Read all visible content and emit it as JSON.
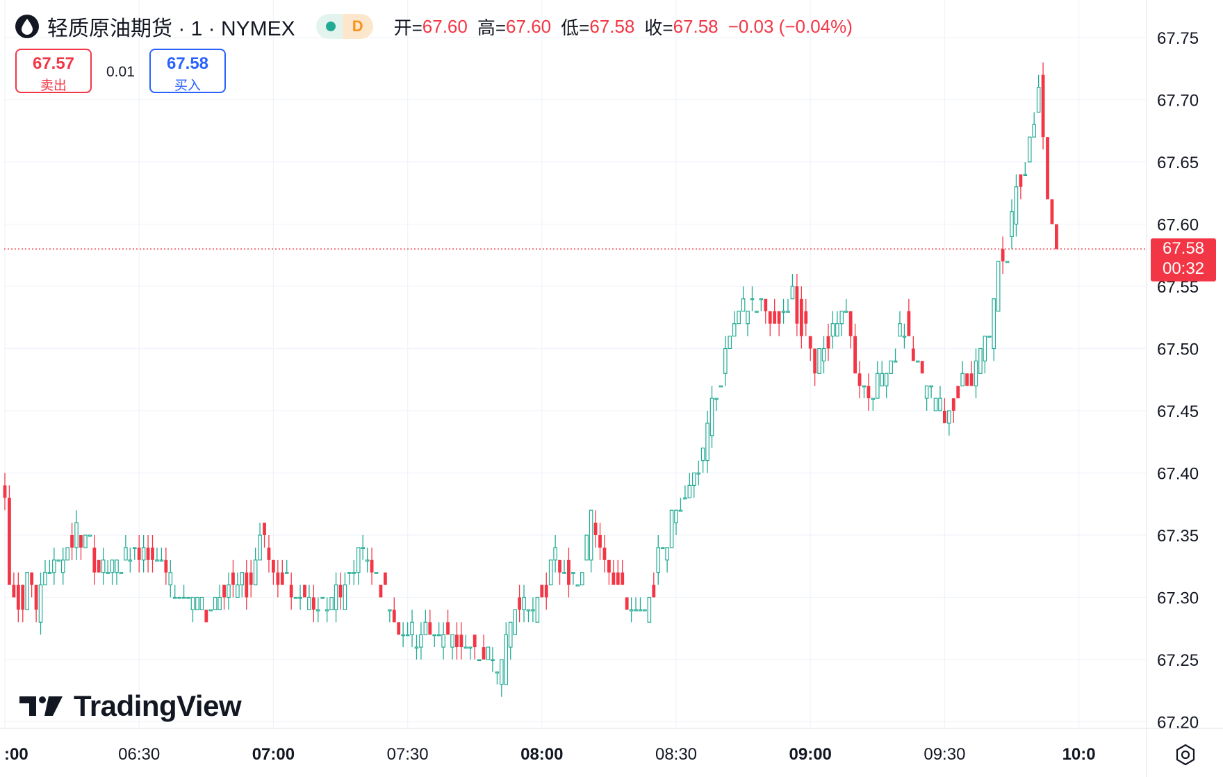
{
  "header": {
    "title": "轻质原油期货 · 1 · NYMEX",
    "badge_letter": "D",
    "ohlc": [
      {
        "label": "开=",
        "value": "67.60"
      },
      {
        "label": "高=",
        "value": "67.60"
      },
      {
        "label": "低=",
        "value": "67.58"
      },
      {
        "label": "收=",
        "value": "67.58"
      }
    ],
    "change": "−0.03 (−0.04%)"
  },
  "trade": {
    "sell_price": "67.57",
    "sell_label": "卖出",
    "spread": "0.01",
    "buy_price": "67.58",
    "buy_label": "买入"
  },
  "price_tag": {
    "price": "67.58",
    "countdown": "00:32"
  },
  "brand": {
    "name": "TradingView"
  },
  "colors": {
    "up": "#22ab94",
    "down": "#f23645",
    "grid": "#f0f3fa",
    "accent": "#2962ff"
  },
  "chart_data": {
    "type": "candlestick",
    "instrument": "轻质原油期货",
    "interval": "1",
    "exchange": "NYMEX",
    "y_ticks": [
      "67.75",
      "67.70",
      "67.65",
      "67.60",
      "67.55",
      "67.50",
      "67.45",
      "67.40",
      "67.35",
      "67.30",
      "67.25",
      "67.20"
    ],
    "ylim": [
      67.18,
      67.775
    ],
    "x_ticks": [
      {
        "label": ":00",
        "minute": 0,
        "bold": true
      },
      {
        "label": "06:30",
        "minute": 30,
        "bold": false
      },
      {
        "label": "07:00",
        "minute": 60,
        "bold": true
      },
      {
        "label": "07:30",
        "minute": 90,
        "bold": false
      },
      {
        "label": "08:00",
        "minute": 120,
        "bold": true
      },
      {
        "label": "08:30",
        "minute": 150,
        "bold": false
      },
      {
        "label": "09:00",
        "minute": 180,
        "bold": true
      },
      {
        "label": "09:30",
        "minute": 210,
        "bold": false
      },
      {
        "label": "10:0",
        "minute": 240,
        "bold": true
      }
    ],
    "last_price": 67.58,
    "grid": true,
    "anchors": [
      {
        "m": 0,
        "p": 67.38
      },
      {
        "m": 1,
        "p": 67.31
      },
      {
        "m": 4,
        "p": 67.3
      },
      {
        "m": 5,
        "p": 67.33
      },
      {
        "m": 7,
        "p": 67.29
      },
      {
        "m": 9,
        "p": 67.32
      },
      {
        "m": 12,
        "p": 67.33
      },
      {
        "m": 16,
        "p": 67.35
      },
      {
        "m": 19,
        "p": 67.34
      },
      {
        "m": 22,
        "p": 67.32
      },
      {
        "m": 26,
        "p": 67.33
      },
      {
        "m": 30,
        "p": 67.34
      },
      {
        "m": 35,
        "p": 67.33
      },
      {
        "m": 38,
        "p": 67.3
      },
      {
        "m": 45,
        "p": 67.29
      },
      {
        "m": 50,
        "p": 67.31
      },
      {
        "m": 55,
        "p": 67.31
      },
      {
        "m": 57,
        "p": 67.36
      },
      {
        "m": 60,
        "p": 67.32
      },
      {
        "m": 65,
        "p": 67.3
      },
      {
        "m": 70,
        "p": 67.29
      },
      {
        "m": 75,
        "p": 67.3
      },
      {
        "m": 79,
        "p": 67.34
      },
      {
        "m": 83,
        "p": 67.32
      },
      {
        "m": 87,
        "p": 67.28
      },
      {
        "m": 92,
        "p": 67.27
      },
      {
        "m": 100,
        "p": 67.27
      },
      {
        "m": 104,
        "p": 67.26
      },
      {
        "m": 108,
        "p": 67.25
      },
      {
        "m": 111,
        "p": 67.24
      },
      {
        "m": 114,
        "p": 67.3
      },
      {
        "m": 118,
        "p": 67.29
      },
      {
        "m": 123,
        "p": 67.33
      },
      {
        "m": 128,
        "p": 67.31
      },
      {
        "m": 131,
        "p": 67.36
      },
      {
        "m": 135,
        "p": 67.33
      },
      {
        "m": 138,
        "p": 67.3
      },
      {
        "m": 143,
        "p": 67.28
      },
      {
        "m": 146,
        "p": 67.33
      },
      {
        "m": 150,
        "p": 67.37
      },
      {
        "m": 154,
        "p": 67.4
      },
      {
        "m": 157,
        "p": 67.43
      },
      {
        "m": 159,
        "p": 67.47
      },
      {
        "m": 163,
        "p": 67.52
      },
      {
        "m": 167,
        "p": 67.54
      },
      {
        "m": 172,
        "p": 67.52
      },
      {
        "m": 176,
        "p": 67.54
      },
      {
        "m": 181,
        "p": 67.49
      },
      {
        "m": 184,
        "p": 67.51
      },
      {
        "m": 188,
        "p": 67.53
      },
      {
        "m": 191,
        "p": 67.47
      },
      {
        "m": 194,
        "p": 67.46
      },
      {
        "m": 197,
        "p": 67.48
      },
      {
        "m": 201,
        "p": 67.52
      },
      {
        "m": 205,
        "p": 67.47
      },
      {
        "m": 210,
        "p": 67.45
      },
      {
        "m": 214,
        "p": 67.47
      },
      {
        "m": 218,
        "p": 67.49
      },
      {
        "m": 220,
        "p": 67.51
      },
      {
        "m": 222,
        "p": 67.57
      },
      {
        "m": 224,
        "p": 67.58
      },
      {
        "m": 226,
        "p": 67.63
      },
      {
        "m": 229,
        "p": 67.66
      },
      {
        "m": 231,
        "p": 67.71
      },
      {
        "m": 233,
        "p": 67.62
      },
      {
        "m": 235,
        "p": 67.59
      }
    ]
  }
}
